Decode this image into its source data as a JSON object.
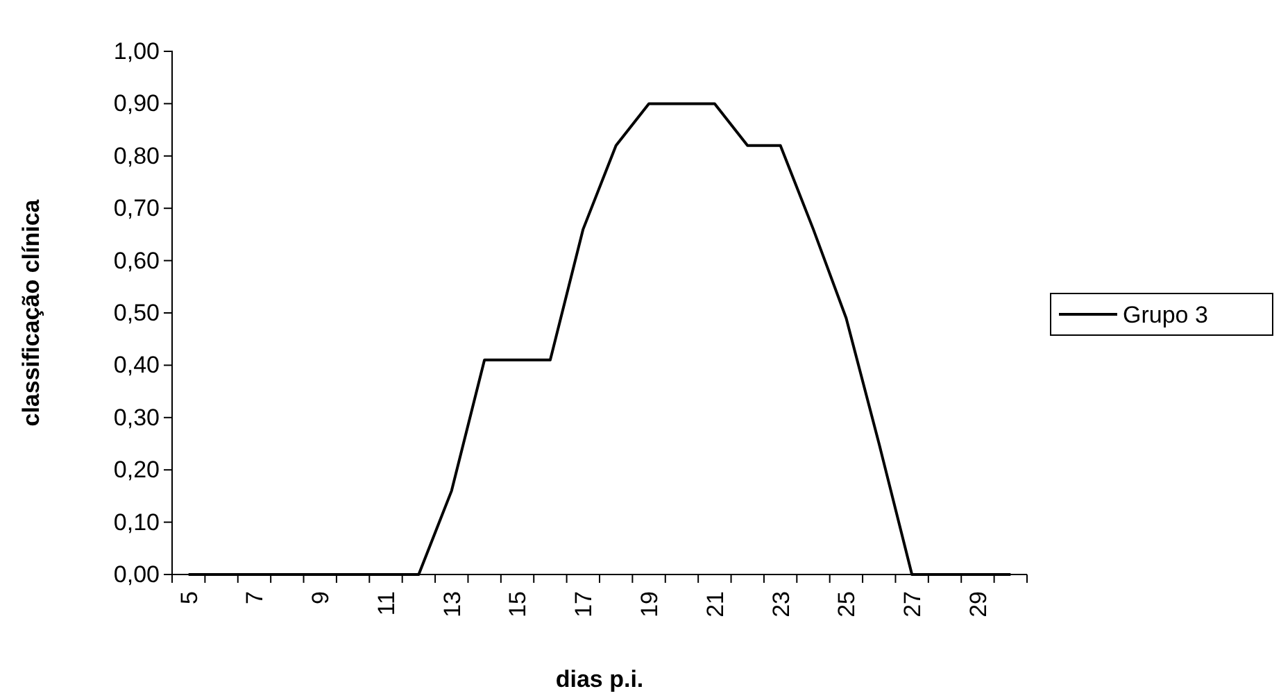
{
  "chart_data": {
    "type": "line",
    "xlabel": "dias p.i.",
    "ylabel": "classificação clínica",
    "categories": [
      "5",
      null,
      "7",
      null,
      "9",
      null,
      "11",
      null,
      "13",
      null,
      "15",
      null,
      "17",
      null,
      "19",
      null,
      "21",
      null,
      "23",
      null,
      "25",
      null,
      "27",
      null,
      "29",
      null
    ],
    "series": [
      {
        "name": "Grupo 3",
        "color": "#000000",
        "values": [
          0,
          0,
          0,
          0,
          0,
          0,
          0,
          0,
          0.16,
          0.41,
          0.41,
          0.41,
          0.66,
          0.82,
          0.9,
          0.9,
          0.9,
          0.82,
          0.82,
          0.66,
          0.49,
          0.25,
          0,
          0,
          0,
          0
        ]
      }
    ],
    "ylim": [
      0,
      1
    ],
    "yticks": [
      {
        "value": 0,
        "label": "0,00"
      },
      {
        "value": 0.1,
        "label": "0,10"
      },
      {
        "value": 0.2,
        "label": "0,20"
      },
      {
        "value": 0.3,
        "label": "0,30"
      },
      {
        "value": 0.4,
        "label": "0,40"
      },
      {
        "value": 0.5,
        "label": "0,50"
      },
      {
        "value": 0.6,
        "label": "0,60"
      },
      {
        "value": 0.7,
        "label": "0,70"
      },
      {
        "value": 0.8,
        "label": "0,80"
      },
      {
        "value": 0.9,
        "label": "0,90"
      },
      {
        "value": 1,
        "label": "1,00"
      }
    ],
    "grid": false,
    "legend": "right",
    "marker": "none",
    "line_style": "solid"
  }
}
